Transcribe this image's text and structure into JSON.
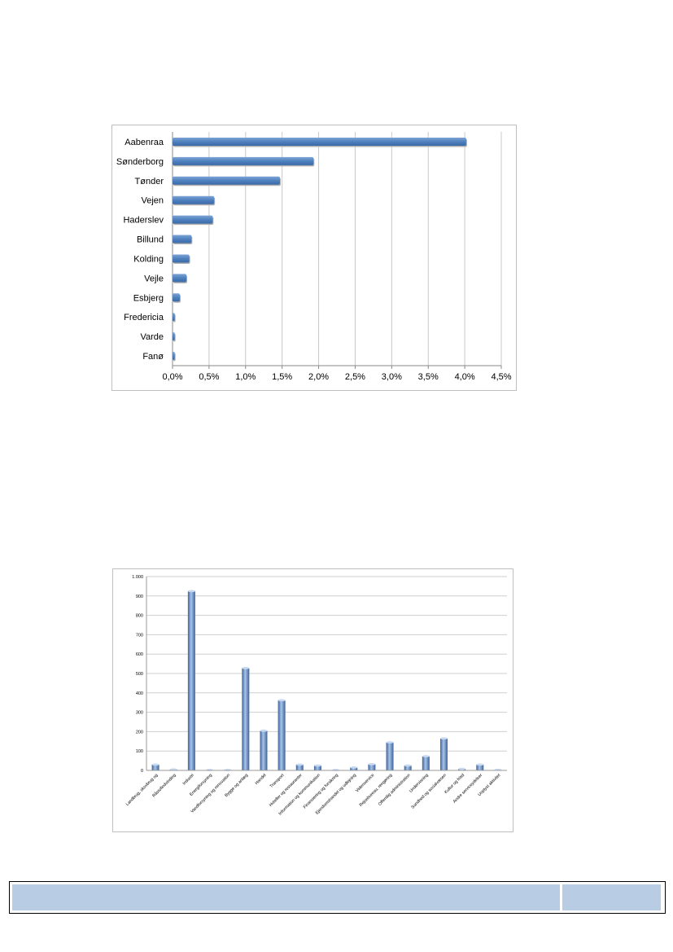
{
  "chart_data": [
    {
      "type": "bar",
      "orientation": "horizontal",
      "categories": [
        "Aabenraa",
        "Sønderborg",
        "Tønder",
        "Vejen",
        "Haderslev",
        "Billund",
        "Kolding",
        "Vejle",
        "Esbjerg",
        "Fredericia",
        "Varde",
        "Fanø"
      ],
      "values": [
        4.02,
        1.93,
        1.47,
        0.57,
        0.55,
        0.26,
        0.23,
        0.19,
        0.1,
        0.03,
        0.03,
        0.03
      ],
      "xlim": [
        0,
        4.5
      ],
      "ticks": [
        "0,0%",
        "0,5%",
        "1,0%",
        "1,5%",
        "2,0%",
        "2,5%",
        "3,0%",
        "3,5%",
        "4,0%",
        "4,5%"
      ],
      "grid": true,
      "color": "#4f81bd"
    },
    {
      "type": "bar",
      "categories": [
        "Landbrug, skovbrug og",
        "Råstofindvinding",
        "Industri",
        "Energiforsyning",
        "Vandforsyning og renovation",
        "Bygge og anlæg",
        "Handel",
        "Transport",
        "Hoteller og restauranter",
        "Information og kommunikation",
        "Finansiering og forsikring",
        "Ejendomshandel og udlejning",
        "Videnservice",
        "Rejsebureau, rengøring",
        "Offentlig administration",
        "Undervisning",
        "Sundhed og socialvæsen",
        "Kultur og fritid",
        "Andre serviceydelser",
        "Uoplyst aktivitet"
      ],
      "values": [
        30,
        5,
        925,
        2,
        2,
        528,
        205,
        362,
        30,
        25,
        2,
        15,
        32,
        145,
        25,
        73,
        165,
        8,
        30,
        3
      ],
      "ylim": [
        0,
        1000
      ],
      "ticks": [
        "0",
        "100",
        "200",
        "300",
        "400",
        "500",
        "600",
        "700",
        "800",
        "900",
        "1.000"
      ],
      "grid": true,
      "color": "#4f81bd"
    }
  ],
  "footer": {
    "left_color": "#b8cce4",
    "right_color": "#b8cce4"
  }
}
